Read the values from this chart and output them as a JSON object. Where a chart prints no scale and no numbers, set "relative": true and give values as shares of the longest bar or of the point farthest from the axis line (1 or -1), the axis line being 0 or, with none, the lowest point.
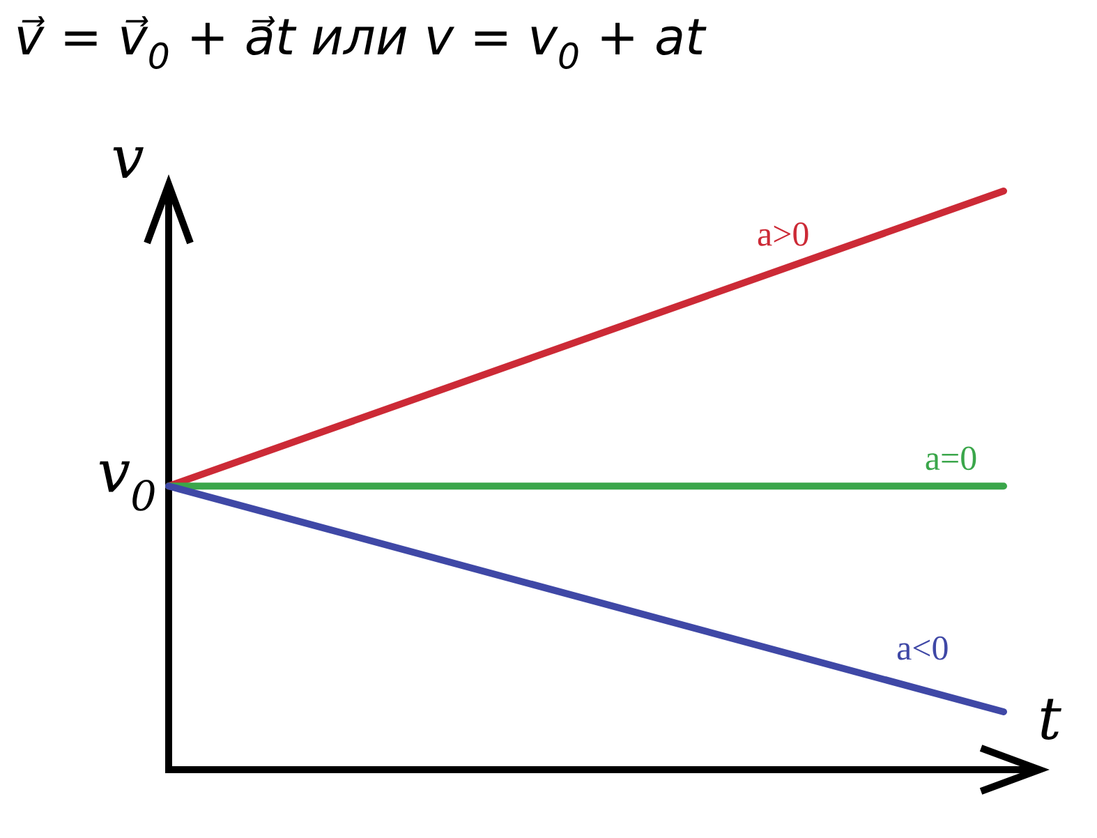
{
  "chart_data": {
    "type": "line",
    "title": "v⃗ = v⃗$_{0}$ + a⃗t или v = v$_{0}$ + at",
    "xlabel": "t",
    "ylabel": "v",
    "relative": true,
    "categories": [
      null,
      null
    ],
    "series": [
      {
        "name": "a>0",
        "color": "#cc2a36",
        "values": [
          0.49,
          1
        ]
      },
      {
        "name": "a=0",
        "color": "#3aa64a",
        "values": [
          0.49,
          0.49
        ]
      },
      {
        "name": "a<0",
        "color": "#3f48a6",
        "values": [
          0.49,
          0.1
        ]
      }
    ],
    "annotations": [
      "v$_{0}$"
    ]
  }
}
